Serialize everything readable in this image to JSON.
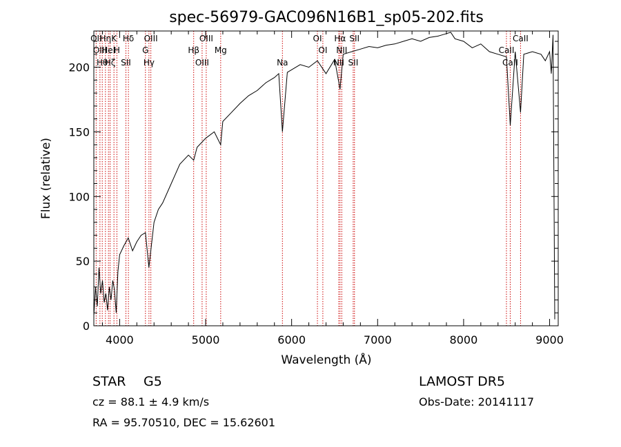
{
  "chart_data": {
    "type": "line",
    "title": "spec-56979-GAC096N16B1_sp05-202.fits",
    "xlabel": "Wavelength (Å)",
    "ylabel": "Flux (relative)",
    "xlim": [
      3700,
      9100
    ],
    "ylim": [
      0,
      228
    ],
    "x_ticks": [
      4000,
      5000,
      6000,
      7000,
      8000,
      9000
    ],
    "x_tick_labels": [
      "4000",
      "5000",
      "6000",
      "7000",
      "8000",
      "9000"
    ],
    "y_ticks": [
      0,
      50,
      100,
      150,
      200
    ],
    "y_tick_labels": [
      "0",
      "50",
      "100",
      "150",
      "200"
    ],
    "grid": false,
    "series": [
      {
        "x": [
          3700,
          3720,
          3740,
          3760,
          3780,
          3800,
          3820,
          3840,
          3860,
          3880,
          3900,
          3920,
          3940,
          3960,
          3980,
          4000,
          4050,
          4100,
          4150,
          4200,
          4250,
          4300,
          4340,
          4400,
          4450,
          4500,
          4600,
          4700,
          4800,
          4861,
          4900,
          5000,
          5100,
          5175,
          5200,
          5300,
          5400,
          5500,
          5600,
          5700,
          5800,
          5850,
          5893,
          5950,
          6000,
          6100,
          6200,
          6300,
          6400,
          6500,
          6563,
          6600,
          6700,
          6800,
          6900,
          7000,
          7100,
          7200,
          7300,
          7400,
          7500,
          7600,
          7700,
          7800,
          7850,
          7900,
          8000,
          8100,
          8200,
          8300,
          8400,
          8498,
          8542,
          8600,
          8662,
          8700,
          8800,
          8900,
          8950,
          9000,
          9020,
          9040,
          9060
        ],
        "y": [
          8,
          30,
          15,
          45,
          25,
          35,
          18,
          25,
          12,
          30,
          20,
          35,
          28,
          10,
          42,
          55,
          62,
          68,
          58,
          65,
          70,
          72,
          45,
          80,
          90,
          95,
          110,
          125,
          132,
          128,
          138,
          145,
          150,
          140,
          158,
          165,
          172,
          178,
          182,
          188,
          192,
          195,
          150,
          196,
          198,
          202,
          200,
          205,
          195,
          206,
          183,
          210,
          212,
          214,
          216,
          215,
          217,
          218,
          220,
          222,
          220,
          223,
          224,
          226,
          227,
          222,
          220,
          215,
          218,
          212,
          210,
          208,
          155,
          212,
          165,
          210,
          212,
          210,
          205,
          212,
          195,
          225,
          5
        ]
      }
    ],
    "lines": [
      {
        "wl": 3727,
        "labels": [
          "OII"
        ]
      },
      {
        "wl": 3771,
        "labels": [
          "OIII"
        ]
      },
      {
        "wl": 3798,
        "labels": [
          "Hθ"
        ]
      },
      {
        "wl": 3835,
        "labels": [
          "Hη"
        ]
      },
      {
        "wl": 3870,
        "labels": [
          "HeI"
        ]
      },
      {
        "wl": 3889,
        "labels": [
          "Hζ"
        ]
      },
      {
        "wl": 3934,
        "labels": [
          "K"
        ]
      },
      {
        "wl": 3968,
        "labels": [
          "H"
        ]
      },
      {
        "wl": 4073,
        "labels": [
          "SII"
        ]
      },
      {
        "wl": 4102,
        "labels": [
          "Hδ"
        ]
      },
      {
        "wl": 4300,
        "labels": [
          "G"
        ]
      },
      {
        "wl": 4341,
        "labels": [
          "Hγ"
        ]
      },
      {
        "wl": 4363,
        "labels": [
          "OIII"
        ]
      },
      {
        "wl": 4861,
        "labels": [
          "Hβ"
        ]
      },
      {
        "wl": 4959,
        "labels": [
          "OIII"
        ]
      },
      {
        "wl": 5007,
        "labels": [
          "OIII"
        ]
      },
      {
        "wl": 5175,
        "labels": [
          "Mg"
        ]
      },
      {
        "wl": 5893,
        "labels": [
          "Na"
        ]
      },
      {
        "wl": 6300,
        "labels": [
          "OI"
        ]
      },
      {
        "wl": 6363,
        "labels": [
          "OI"
        ]
      },
      {
        "wl": 6548,
        "labels": [
          "NII"
        ]
      },
      {
        "wl": 6563,
        "labels": [
          "Hα"
        ]
      },
      {
        "wl": 6583,
        "labels": [
          "NII"
        ]
      },
      {
        "wl": 6716,
        "labels": [
          "SII"
        ]
      },
      {
        "wl": 6731,
        "labels": [
          "SII"
        ]
      },
      {
        "wl": 8498,
        "labels": [
          "CaII"
        ]
      },
      {
        "wl": 8542,
        "labels": [
          "CaII"
        ]
      },
      {
        "wl": 8662,
        "labels": [
          "CaII"
        ]
      }
    ],
    "colors": {
      "spectrum": "#000000",
      "line_markers": "#cc0000"
    }
  },
  "info": {
    "object_class": "STAR",
    "subclass": "G5",
    "survey": "LAMOST DR5",
    "cz": "cz = 88.1 ± 4.9 km/s",
    "obs_date": "Obs-Date: 20141117",
    "coords": "RA =  95.70510, DEC =  15.62601"
  }
}
